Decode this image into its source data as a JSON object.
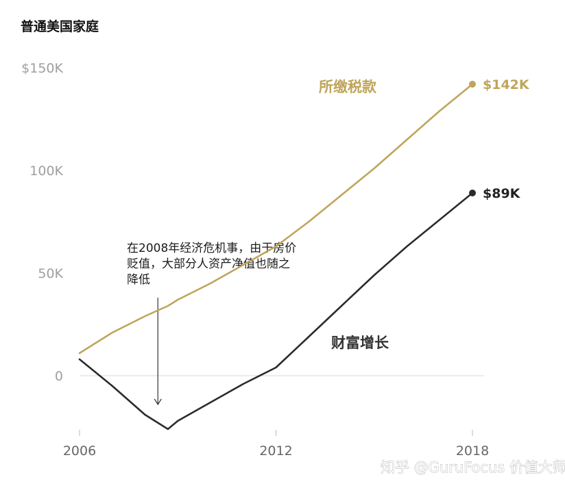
{
  "chart_data": {
    "type": "line",
    "title": "普通美国家庭",
    "x": [
      2006,
      2007,
      2008,
      2008.7,
      2009,
      2010,
      2011,
      2012,
      2013,
      2014,
      2015,
      2016,
      2017,
      2018
    ],
    "xlim": [
      2006,
      2018
    ],
    "xticks": [
      "2006",
      "2012",
      "2018"
    ],
    "ylim": [
      -26,
      150
    ],
    "yticks": [
      {
        "value": 0,
        "label": "0"
      },
      {
        "value": 50,
        "label": "50K"
      },
      {
        "value": 100,
        "label": "100K"
      },
      {
        "value": 150,
        "label": "$150K"
      }
    ],
    "grid": "zero-line only",
    "series": [
      {
        "name": "所缴税款",
        "color": "#bfa55a",
        "values": [
          11,
          21,
          29,
          34,
          37,
          45,
          54,
          63,
          75,
          88,
          101,
          115,
          129,
          142
        ],
        "end_label": "$142K"
      },
      {
        "name": "财富增长",
        "color": "#2b2b2b",
        "values": [
          8,
          -5,
          -19,
          -26,
          -22,
          -13,
          -4,
          4,
          19,
          34,
          49,
          63,
          76,
          89
        ],
        "end_label": "$89K"
      }
    ],
    "annotation": {
      "lines": [
        "在2008年经济危机事，由于房价",
        "贬值，大部分人资产净值也随之",
        "降低"
      ],
      "arrow_x": 2009,
      "arrow_from": 38,
      "arrow_to": -14
    }
  },
  "watermark": "知乎 @GuruFocus 价值大师"
}
